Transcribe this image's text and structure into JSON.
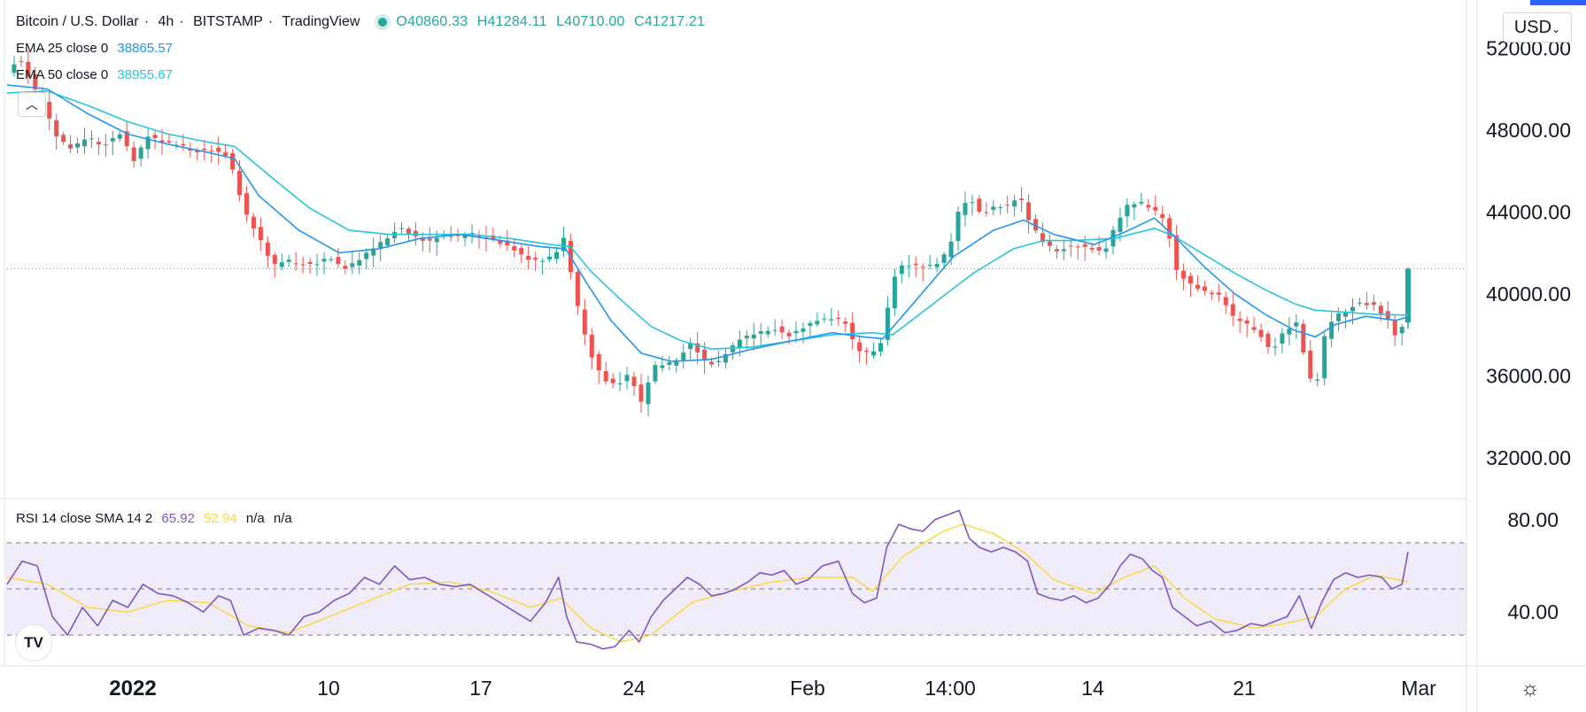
{
  "header": {
    "symbol": "Bitcoin / U.S. Dollar",
    "interval": "4h",
    "exchange": "BITSTAMP",
    "platform": "TradingView",
    "open": "O40860.33",
    "high": "H41284.11",
    "low": "L40710.00",
    "close": "C41217.21"
  },
  "indicators": {
    "ema25_label": "EMA 25 close 0",
    "ema25_value": "38865.57",
    "ema50_label": "EMA 50 close 0",
    "ema50_value": "38955.67",
    "rsi_label": "RSI 14 close SMA 14 2",
    "rsi_value": "65.92",
    "rsi_sma_value": "52.94",
    "rsi_na1": "n/a",
    "rsi_na2": "n/a"
  },
  "currency": "USD",
  "colors": {
    "up": "#26a69a",
    "down": "#ef5350",
    "ema25": "#2196f3",
    "ema50": "#26c6da",
    "rsi": "#7e57c2",
    "rsi_sma": "#fdd835",
    "rsi_band": "#7e57c2"
  },
  "icons": {
    "logo": "tradingview-logo-icon",
    "settings": "gear-icon",
    "collapse": "chevron-up-icon"
  },
  "chart_data": {
    "type": "candlestick",
    "price_axis": {
      "ylim": [
        30000,
        54000
      ],
      "ticks": [
        "52000.00",
        "48000.00",
        "44000.00",
        "40000.00",
        "36000.00",
        "32000.00"
      ]
    },
    "time_axis": {
      "ticks": [
        "2022",
        "10",
        "17",
        "24",
        "Feb",
        "14:00",
        "14",
        "21",
        "Mar"
      ]
    },
    "last_price": 41217.21,
    "price_path": [
      [
        0,
        50800
      ],
      [
        12,
        51500
      ],
      [
        24,
        50300
      ],
      [
        36,
        49200
      ],
      [
        50,
        47600
      ],
      [
        64,
        47100
      ],
      [
        80,
        47700
      ],
      [
        96,
        47200
      ],
      [
        112,
        47800
      ],
      [
        126,
        46500
      ],
      [
        140,
        47700
      ],
      [
        156,
        47400
      ],
      [
        172,
        47300
      ],
      [
        188,
        46900
      ],
      [
        204,
        47000
      ],
      [
        220,
        46700
      ],
      [
        236,
        44000
      ],
      [
        250,
        42800
      ],
      [
        264,
        41400
      ],
      [
        278,
        41700
      ],
      [
        292,
        41400
      ],
      [
        306,
        41400
      ],
      [
        320,
        41800
      ],
      [
        334,
        41200
      ],
      [
        348,
        41600
      ],
      [
        362,
        42200
      ],
      [
        376,
        42700
      ],
      [
        390,
        43200
      ],
      [
        404,
        42800
      ],
      [
        418,
        42500
      ],
      [
        432,
        42900
      ],
      [
        446,
        42800
      ],
      [
        460,
        43000
      ],
      [
        474,
        42700
      ],
      [
        488,
        42500
      ],
      [
        502,
        42200
      ],
      [
        516,
        41700
      ],
      [
        530,
        41600
      ],
      [
        544,
        41900
      ],
      [
        555,
        42900
      ],
      [
        562,
        40400
      ],
      [
        570,
        38800
      ],
      [
        580,
        37000
      ],
      [
        592,
        35800
      ],
      [
        606,
        35500
      ],
      [
        620,
        36200
      ],
      [
        628,
        34400
      ],
      [
        636,
        35600
      ],
      [
        644,
        36500
      ],
      [
        656,
        36600
      ],
      [
        668,
        36900
      ],
      [
        680,
        37600
      ],
      [
        692,
        36700
      ],
      [
        704,
        36500
      ],
      [
        716,
        37200
      ],
      [
        728,
        37800
      ],
      [
        744,
        38100
      ],
      [
        760,
        38300
      ],
      [
        776,
        37900
      ],
      [
        790,
        38300
      ],
      [
        804,
        38700
      ],
      [
        818,
        38800
      ],
      [
        832,
        38700
      ],
      [
        844,
        37300
      ],
      [
        858,
        37100
      ],
      [
        868,
        37600
      ],
      [
        876,
        39500
      ],
      [
        884,
        41300
      ],
      [
        898,
        41400
      ],
      [
        912,
        41300
      ],
      [
        924,
        41500
      ],
      [
        936,
        42200
      ],
      [
        946,
        44200
      ],
      [
        956,
        44700
      ],
      [
        968,
        43800
      ],
      [
        980,
        44200
      ],
      [
        994,
        44300
      ],
      [
        1006,
        44800
      ],
      [
        1016,
        43500
      ],
      [
        1030,
        42500
      ],
      [
        1044,
        42100
      ],
      [
        1060,
        42300
      ],
      [
        1076,
        42200
      ],
      [
        1090,
        42000
      ],
      [
        1100,
        43200
      ],
      [
        1112,
        44300
      ],
      [
        1126,
        44500
      ],
      [
        1140,
        44100
      ],
      [
        1152,
        43600
      ],
      [
        1160,
        41200
      ],
      [
        1174,
        40500
      ],
      [
        1190,
        40100
      ],
      [
        1206,
        39900
      ],
      [
        1218,
        38900
      ],
      [
        1230,
        38600
      ],
      [
        1242,
        38200
      ],
      [
        1256,
        37100
      ],
      [
        1268,
        38100
      ],
      [
        1282,
        38600
      ],
      [
        1292,
        36200
      ],
      [
        1300,
        35200
      ],
      [
        1308,
        37800
      ],
      [
        1318,
        38900
      ],
      [
        1330,
        39200
      ],
      [
        1344,
        39500
      ],
      [
        1358,
        39400
      ],
      [
        1372,
        38700
      ],
      [
        1380,
        37900
      ],
      [
        1388,
        38500
      ],
      [
        1392,
        41200
      ]
    ],
    "ema25_path": [
      [
        0,
        50200
      ],
      [
        40,
        50000
      ],
      [
        80,
        48800
      ],
      [
        120,
        47800
      ],
      [
        160,
        47300
      ],
      [
        200,
        46900
      ],
      [
        226,
        46600
      ],
      [
        250,
        44800
      ],
      [
        290,
        43100
      ],
      [
        330,
        42000
      ],
      [
        370,
        42200
      ],
      [
        410,
        42700
      ],
      [
        450,
        42900
      ],
      [
        490,
        42600
      ],
      [
        530,
        42300
      ],
      [
        555,
        42200
      ],
      [
        575,
        40600
      ],
      [
        600,
        38700
      ],
      [
        630,
        37100
      ],
      [
        660,
        36700
      ],
      [
        700,
        36800
      ],
      [
        740,
        37300
      ],
      [
        780,
        37700
      ],
      [
        820,
        38100
      ],
      [
        850,
        37900
      ],
      [
        870,
        37800
      ],
      [
        900,
        39500
      ],
      [
        940,
        41800
      ],
      [
        980,
        43100
      ],
      [
        1010,
        43600
      ],
      [
        1040,
        42900
      ],
      [
        1080,
        42400
      ],
      [
        1110,
        43000
      ],
      [
        1140,
        43700
      ],
      [
        1160,
        42800
      ],
      [
        1190,
        41300
      ],
      [
        1220,
        40000
      ],
      [
        1250,
        39000
      ],
      [
        1280,
        38200
      ],
      [
        1300,
        37900
      ],
      [
        1320,
        38500
      ],
      [
        1350,
        38900
      ],
      [
        1380,
        38700
      ],
      [
        1392,
        38866
      ]
    ],
    "ema50_path": [
      [
        0,
        49800
      ],
      [
        40,
        49900
      ],
      [
        80,
        49200
      ],
      [
        120,
        48400
      ],
      [
        160,
        47800
      ],
      [
        200,
        47400
      ],
      [
        226,
        47200
      ],
      [
        260,
        45800
      ],
      [
        300,
        44200
      ],
      [
        340,
        43100
      ],
      [
        380,
        42900
      ],
      [
        420,
        42900
      ],
      [
        460,
        42900
      ],
      [
        500,
        42700
      ],
      [
        540,
        42400
      ],
      [
        560,
        42300
      ],
      [
        580,
        41100
      ],
      [
        610,
        39700
      ],
      [
        640,
        38400
      ],
      [
        670,
        37700
      ],
      [
        700,
        37300
      ],
      [
        740,
        37400
      ],
      [
        780,
        37700
      ],
      [
        820,
        38000
      ],
      [
        860,
        38100
      ],
      [
        880,
        38000
      ],
      [
        920,
        39500
      ],
      [
        960,
        41000
      ],
      [
        1000,
        42200
      ],
      [
        1030,
        42600
      ],
      [
        1060,
        42600
      ],
      [
        1100,
        42700
      ],
      [
        1140,
        43200
      ],
      [
        1160,
        42800
      ],
      [
        1190,
        41900
      ],
      [
        1220,
        41000
      ],
      [
        1250,
        40200
      ],
      [
        1280,
        39500
      ],
      [
        1300,
        39200
      ],
      [
        1330,
        39100
      ],
      [
        1360,
        39000
      ],
      [
        1392,
        38956
      ]
    ],
    "rsi_panel": {
      "ylim": [
        17,
        88
      ],
      "ticks": [
        "80.00",
        "40.00"
      ],
      "band": [
        30,
        70
      ],
      "midline": 50
    },
    "rsi_path": [
      [
        0,
        52
      ],
      [
        15,
        62
      ],
      [
        30,
        60
      ],
      [
        45,
        38
      ],
      [
        60,
        30
      ],
      [
        75,
        42
      ],
      [
        90,
        34
      ],
      [
        105,
        45
      ],
      [
        120,
        42
      ],
      [
        135,
        52
      ],
      [
        150,
        48
      ],
      [
        165,
        47
      ],
      [
        180,
        44
      ],
      [
        195,
        40
      ],
      [
        210,
        47
      ],
      [
        222,
        45
      ],
      [
        235,
        30
      ],
      [
        250,
        33
      ],
      [
        265,
        32
      ],
      [
        280,
        30
      ],
      [
        295,
        38
      ],
      [
        310,
        40
      ],
      [
        325,
        45
      ],
      [
        340,
        48
      ],
      [
        355,
        55
      ],
      [
        370,
        52
      ],
      [
        385,
        60
      ],
      [
        400,
        54
      ],
      [
        415,
        55
      ],
      [
        430,
        52
      ],
      [
        445,
        51
      ],
      [
        460,
        52
      ],
      [
        475,
        48
      ],
      [
        490,
        44
      ],
      [
        505,
        40
      ],
      [
        520,
        36
      ],
      [
        535,
        44
      ],
      [
        548,
        55
      ],
      [
        556,
        38
      ],
      [
        566,
        27
      ],
      [
        580,
        26
      ],
      [
        592,
        24
      ],
      [
        604,
        25
      ],
      [
        618,
        32
      ],
      [
        628,
        27
      ],
      [
        640,
        38
      ],
      [
        652,
        45
      ],
      [
        664,
        50
      ],
      [
        676,
        55
      ],
      [
        688,
        52
      ],
      [
        700,
        47
      ],
      [
        712,
        48
      ],
      [
        724,
        50
      ],
      [
        736,
        53
      ],
      [
        748,
        57
      ],
      [
        760,
        56
      ],
      [
        772,
        58
      ],
      [
        784,
        52
      ],
      [
        796,
        54
      ],
      [
        810,
        60
      ],
      [
        826,
        62
      ],
      [
        840,
        48
      ],
      [
        852,
        44
      ],
      [
        864,
        46
      ],
      [
        874,
        68
      ],
      [
        886,
        78
      ],
      [
        898,
        76
      ],
      [
        910,
        75
      ],
      [
        922,
        80
      ],
      [
        934,
        82
      ],
      [
        946,
        84
      ],
      [
        956,
        72
      ],
      [
        966,
        68
      ],
      [
        978,
        66
      ],
      [
        990,
        68
      ],
      [
        1002,
        66
      ],
      [
        1014,
        62
      ],
      [
        1024,
        48
      ],
      [
        1036,
        46
      ],
      [
        1048,
        45
      ],
      [
        1060,
        47
      ],
      [
        1072,
        44
      ],
      [
        1084,
        46
      ],
      [
        1096,
        52
      ],
      [
        1106,
        60
      ],
      [
        1116,
        65
      ],
      [
        1128,
        63
      ],
      [
        1138,
        58
      ],
      [
        1148,
        55
      ],
      [
        1158,
        42
      ],
      [
        1170,
        38
      ],
      [
        1182,
        34
      ],
      [
        1196,
        36
      ],
      [
        1210,
        31
      ],
      [
        1222,
        32
      ],
      [
        1236,
        35
      ],
      [
        1248,
        34
      ],
      [
        1260,
        36
      ],
      [
        1272,
        38
      ],
      [
        1284,
        47
      ],
      [
        1296,
        33
      ],
      [
        1306,
        44
      ],
      [
        1318,
        54
      ],
      [
        1330,
        57
      ],
      [
        1342,
        55
      ],
      [
        1354,
        56
      ],
      [
        1366,
        55
      ],
      [
        1376,
        50
      ],
      [
        1386,
        52
      ],
      [
        1392,
        66
      ]
    ],
    "rsi_sma_path": [
      [
        0,
        55
      ],
      [
        40,
        52
      ],
      [
        80,
        42
      ],
      [
        120,
        40
      ],
      [
        160,
        45
      ],
      [
        200,
        44
      ],
      [
        240,
        34
      ],
      [
        280,
        31
      ],
      [
        320,
        38
      ],
      [
        360,
        45
      ],
      [
        400,
        52
      ],
      [
        440,
        53
      ],
      [
        480,
        49
      ],
      [
        520,
        42
      ],
      [
        550,
        46
      ],
      [
        580,
        33
      ],
      [
        610,
        27
      ],
      [
        640,
        30
      ],
      [
        680,
        44
      ],
      [
        720,
        49
      ],
      [
        760,
        53
      ],
      [
        800,
        55
      ],
      [
        840,
        55
      ],
      [
        860,
        49
      ],
      [
        890,
        64
      ],
      [
        930,
        75
      ],
      [
        950,
        78
      ],
      [
        980,
        74
      ],
      [
        1010,
        66
      ],
      [
        1040,
        54
      ],
      [
        1080,
        48
      ],
      [
        1110,
        55
      ],
      [
        1140,
        60
      ],
      [
        1170,
        46
      ],
      [
        1200,
        37
      ],
      [
        1240,
        33
      ],
      [
        1270,
        35
      ],
      [
        1300,
        38
      ],
      [
        1330,
        50
      ],
      [
        1360,
        56
      ],
      [
        1392,
        53
      ]
    ]
  }
}
